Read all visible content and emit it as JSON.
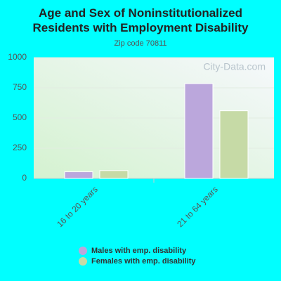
{
  "chart_data": {
    "type": "bar",
    "title": "Age and Sex of Noninstitutionalized Residents with Employment Disability",
    "subtitle": "Zip code 70811",
    "watermark": "City-Data.com",
    "categories": [
      "16 to 20 years",
      "21 to 64 years"
    ],
    "series": [
      {
        "name": "Males with emp. disability",
        "color": "#bba7dc",
        "values": [
          55,
          785
        ]
      },
      {
        "name": "Females with emp. disability",
        "color": "#c6daa6",
        "values": [
          65,
          560
        ]
      }
    ],
    "ylim": [
      0,
      1000
    ],
    "yticks": [
      0,
      250,
      500,
      750,
      1000
    ],
    "grid": true
  }
}
